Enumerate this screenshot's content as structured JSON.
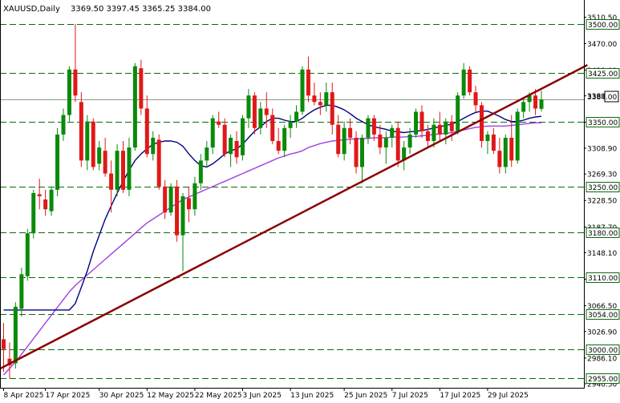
{
  "header": {
    "symbol_timeframe": "XAUUSD,Daily",
    "ohlc": "3369.50 3397.45 3365.25 3384.00"
  },
  "current_price_label": "3384.00",
  "colors": {
    "bull": "#0a8a0a",
    "bear": "#e01818",
    "ma_fast": "#000080",
    "ma_slow": "#a040e0",
    "trendline": "#8b0000",
    "level_line": "#0a6a0a",
    "price_line": "#8a9a8a",
    "axis": "#000000"
  },
  "chart_data": {
    "type": "candlestick",
    "ylim": [
      2946.5,
      3516.0
    ],
    "y_ticks": [
      "3510.50",
      "3470.00",
      "3429.00",
      "3389.50",
      "3349.00",
      "3308.90",
      "3269.30",
      "3228.50",
      "3187.70",
      "3148.10",
      "3107.40",
      "3066.50",
      "3026.90",
      "2986.10",
      "2946.50"
    ],
    "x_tick_labels": [
      "8 Apr 2025",
      "17 Apr 2025",
      "30 Apr 2025",
      "12 May 2025",
      "22 May 2025",
      "3 Jun 2025",
      "13 Jun 2025",
      "25 Jun 2025",
      "7 Jul 2025",
      "17 Jul 2025",
      "29 Jul 2025"
    ],
    "x_tick_bar_index": [
      0,
      7,
      16,
      24,
      32,
      40,
      48,
      57,
      65,
      73,
      81
    ],
    "horizontal_levels": [
      {
        "label": "3500.00",
        "value": 3500.0
      },
      {
        "label": "3425.00",
        "value": 3425.0
      },
      {
        "label": "3350.00",
        "value": 3350.0
      },
      {
        "label": "3250.00",
        "value": 3250.0
      },
      {
        "label": "3180.00",
        "value": 3180.0
      },
      {
        "label": "3110.00",
        "value": 3110.0
      },
      {
        "label": "3054.00",
        "value": 3054.0
      },
      {
        "label": "3000.00",
        "value": 3000.0
      },
      {
        "label": "2955.00",
        "value": 2955.0
      }
    ],
    "trendline": {
      "start": [
        0,
        2970.0
      ],
      "end": [
        93,
        3432.0
      ]
    },
    "candles": [
      [
        3015,
        3040,
        2965,
        3000
      ],
      [
        2985,
        3010,
        2955,
        2975
      ],
      [
        2978,
        3072,
        2970,
        3065
      ],
      [
        3062,
        3125,
        3050,
        3115
      ],
      [
        3112,
        3185,
        3105,
        3178
      ],
      [
        3178,
        3245,
        3170,
        3240
      ],
      [
        3238,
        3262,
        3215,
        3235
      ],
      [
        3230,
        3245,
        3205,
        3215
      ],
      [
        3212,
        3250,
        3205,
        3245
      ],
      [
        3245,
        3340,
        3235,
        3330
      ],
      [
        3330,
        3370,
        3320,
        3360
      ],
      [
        3360,
        3435,
        3350,
        3430
      ],
      [
        3430,
        3500,
        3380,
        3390
      ],
      [
        3380,
        3395,
        3280,
        3290
      ],
      [
        3290,
        3360,
        3275,
        3350
      ],
      [
        3350,
        3355,
        3275,
        3280
      ],
      [
        3285,
        3320,
        3275,
        3310
      ],
      [
        3305,
        3325,
        3265,
        3270
      ],
      [
        3270,
        3290,
        3210,
        3245
      ],
      [
        3245,
        3315,
        3235,
        3305
      ],
      [
        3305,
        3320,
        3240,
        3245
      ],
      [
        3245,
        3325,
        3235,
        3310
      ],
      [
        3310,
        3440,
        3305,
        3435
      ],
      [
        3432,
        3445,
        3360,
        3370
      ],
      [
        3370,
        3390,
        3295,
        3300
      ],
      [
        3300,
        3335,
        3290,
        3325
      ],
      [
        3322,
        3330,
        3245,
        3250
      ],
      [
        3250,
        3260,
        3200,
        3210
      ],
      [
        3210,
        3255,
        3205,
        3250
      ],
      [
        3250,
        3260,
        3165,
        3175
      ],
      [
        3175,
        3240,
        3120,
        3235
      ],
      [
        3232,
        3250,
        3195,
        3215
      ],
      [
        3215,
        3265,
        3205,
        3255
      ],
      [
        3255,
        3300,
        3245,
        3290
      ],
      [
        3290,
        3320,
        3280,
        3310
      ],
      [
        3310,
        3360,
        3300,
        3355
      ],
      [
        3350,
        3365,
        3340,
        3345
      ],
      [
        3345,
        3355,
        3295,
        3300
      ],
      [
        3300,
        3330,
        3280,
        3325
      ],
      [
        3320,
        3335,
        3285,
        3295
      ],
      [
        3298,
        3360,
        3290,
        3355
      ],
      [
        3355,
        3400,
        3340,
        3390
      ],
      [
        3390,
        3395,
        3330,
        3340
      ],
      [
        3340,
        3380,
        3330,
        3370
      ],
      [
        3370,
        3395,
        3340,
        3360
      ],
      [
        3360,
        3370,
        3315,
        3320
      ],
      [
        3320,
        3340,
        3300,
        3305
      ],
      [
        3305,
        3345,
        3295,
        3340
      ],
      [
        3340,
        3360,
        3325,
        3350
      ],
      [
        3350,
        3375,
        3340,
        3365
      ],
      [
        3365,
        3435,
        3360,
        3430
      ],
      [
        3430,
        3450,
        3380,
        3390
      ],
      [
        3390,
        3410,
        3375,
        3380
      ],
      [
        3380,
        3395,
        3360,
        3375
      ],
      [
        3375,
        3410,
        3365,
        3395
      ],
      [
        3395,
        3410,
        3330,
        3345
      ],
      [
        3345,
        3360,
        3295,
        3300
      ],
      [
        3300,
        3350,
        3290,
        3340
      ],
      [
        3340,
        3355,
        3315,
        3325
      ],
      [
        3325,
        3335,
        3270,
        3280
      ],
      [
        3280,
        3330,
        3255,
        3325
      ],
      [
        3325,
        3360,
        3315,
        3355
      ],
      [
        3355,
        3360,
        3320,
        3330
      ],
      [
        3330,
        3345,
        3300,
        3310
      ],
      [
        3310,
        3335,
        3285,
        3325
      ],
      [
        3325,
        3345,
        3310,
        3340
      ],
      [
        3340,
        3350,
        3280,
        3290
      ],
      [
        3290,
        3320,
        3275,
        3310
      ],
      [
        3310,
        3340,
        3300,
        3330
      ],
      [
        3330,
        3370,
        3325,
        3365
      ],
      [
        3365,
        3375,
        3325,
        3335
      ],
      [
        3335,
        3345,
        3310,
        3320
      ],
      [
        3320,
        3355,
        3310,
        3345
      ],
      [
        3345,
        3365,
        3320,
        3330
      ],
      [
        3330,
        3355,
        3315,
        3350
      ],
      [
        3350,
        3360,
        3320,
        3335
      ],
      [
        3335,
        3395,
        3330,
        3390
      ],
      [
        3390,
        3440,
        3385,
        3430
      ],
      [
        3430,
        3435,
        3390,
        3395
      ],
      [
        3395,
        3405,
        3365,
        3375
      ],
      [
        3375,
        3380,
        3310,
        3320
      ],
      [
        3320,
        3335,
        3300,
        3330
      ],
      [
        3330,
        3340,
        3300,
        3305
      ],
      [
        3305,
        3325,
        3270,
        3280
      ],
      [
        3280,
        3330,
        3270,
        3325
      ],
      [
        3325,
        3360,
        3280,
        3290
      ],
      [
        3290,
        3370,
        3285,
        3365
      ],
      [
        3365,
        3385,
        3355,
        3380
      ],
      [
        3380,
        3395,
        3365,
        3390
      ],
      [
        3390,
        3400,
        3360,
        3370
      ],
      [
        3369.5,
        3397.45,
        3365.25,
        3384.0
      ]
    ],
    "ma_fast": [
      3060,
      3060,
      3060,
      3060,
      3060,
      3060,
      3060,
      3060,
      3060,
      3060,
      3060,
      3060,
      3070,
      3095,
      3120,
      3150,
      3175,
      3200,
      3220,
      3240,
      3258,
      3275,
      3290,
      3300,
      3308,
      3315,
      3318,
      3320,
      3320,
      3318,
      3312,
      3300,
      3290,
      3282,
      3280,
      3285,
      3292,
      3300,
      3305,
      3308,
      3315,
      3325,
      3335,
      3342,
      3350,
      3355,
      3355,
      3352,
      3350,
      3350,
      3355,
      3362,
      3368,
      3372,
      3375,
      3375,
      3372,
      3368,
      3362,
      3355,
      3350,
      3345,
      3342,
      3340,
      3338,
      3335,
      3334,
      3333,
      3334,
      3335,
      3336,
      3338,
      3340,
      3342,
      3344,
      3346,
      3350,
      3355,
      3360,
      3364,
      3366,
      3366,
      3362,
      3358,
      3353,
      3350,
      3350,
      3352,
      3355,
      3357,
      3358
    ],
    "ma_slow": [
      2960,
      2970,
      2980,
      2992,
      3004,
      3016,
      3028,
      3040,
      3052,
      3064,
      3076,
      3088,
      3098,
      3106,
      3114,
      3122,
      3130,
      3138,
      3146,
      3154,
      3162,
      3170,
      3178,
      3186,
      3194,
      3200,
      3206,
      3212,
      3218,
      3224,
      3230,
      3234,
      3238,
      3242,
      3246,
      3250,
      3254,
      3258,
      3262,
      3266,
      3270,
      3274,
      3278,
      3282,
      3286,
      3290,
      3294,
      3297,
      3300,
      3302,
      3305,
      3310,
      3313,
      3316,
      3318,
      3320,
      3321,
      3322,
      3323,
      3323,
      3324,
      3324,
      3325,
      3325,
      3325,
      3326,
      3326,
      3326,
      3327,
      3327,
      3328,
      3329,
      3330,
      3331,
      3332,
      3333,
      3335,
      3337,
      3339,
      3341,
      3342,
      3343,
      3343,
      3343,
      3343,
      3344,
      3345,
      3346,
      3347,
      3348,
      3348
    ]
  }
}
